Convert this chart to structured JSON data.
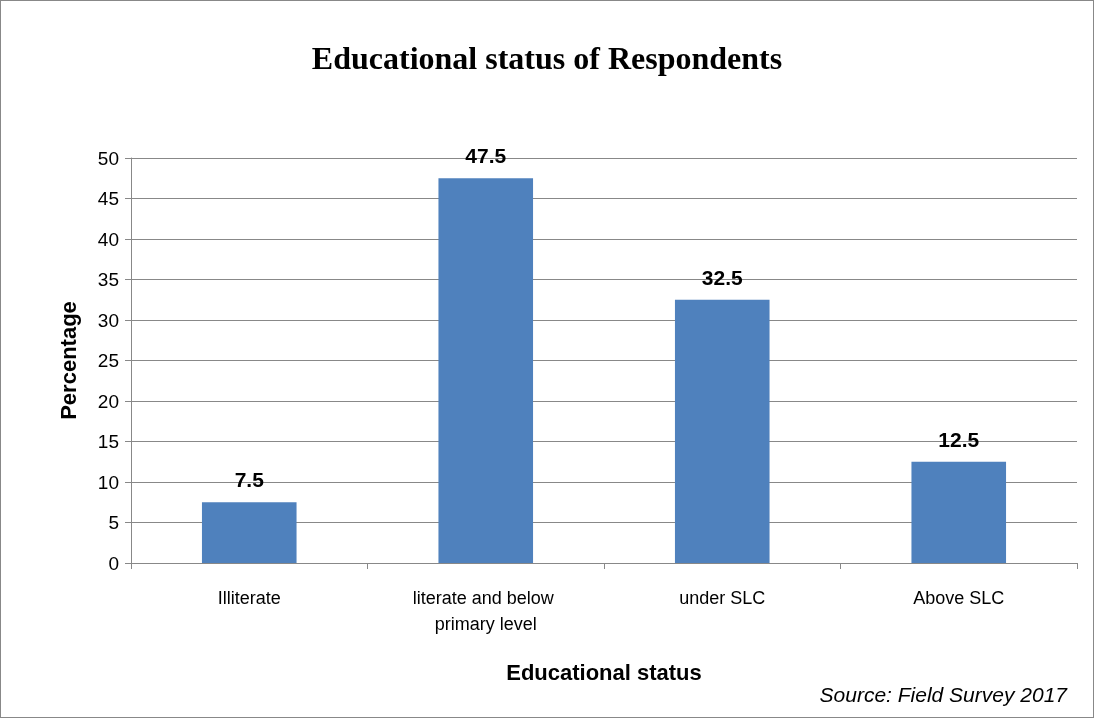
{
  "chart_data": {
    "type": "bar",
    "title": "Educational status of Respondents",
    "categories": [
      "Illiterate",
      "literate and below primary level",
      "under SLC",
      "Above SLC"
    ],
    "values": [
      7.5,
      47.5,
      32.5,
      12.5
    ],
    "color": "#4f81bd",
    "xlabel": "Educational status",
    "ylabel": "Percentage",
    "ylim": [
      0,
      50
    ],
    "yticks": [
      0,
      5,
      10,
      15,
      20,
      25,
      30,
      35,
      40,
      45,
      50
    ],
    "grid": "y",
    "data_labels": true,
    "annotations": [
      "Source: Field Survey 2017"
    ]
  }
}
